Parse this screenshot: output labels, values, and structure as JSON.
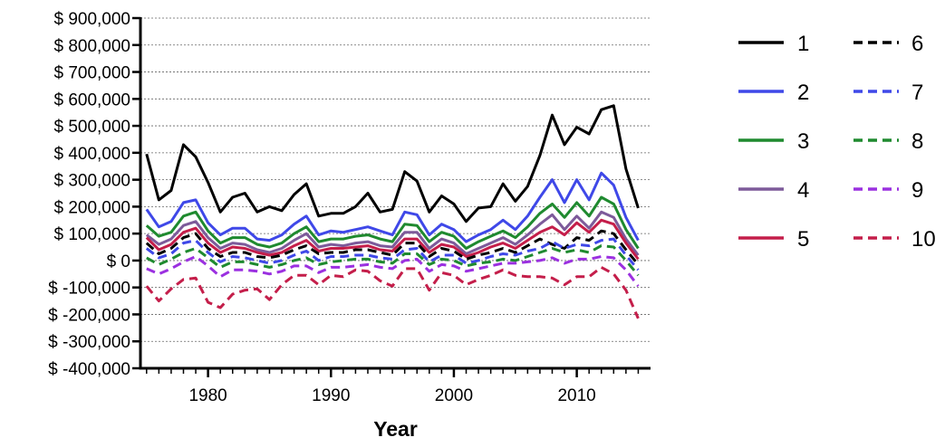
{
  "chart_data": {
    "type": "line",
    "title": "",
    "xlabel": "Year",
    "ylabel": "",
    "xlim": [
      1974.5,
      2016
    ],
    "ylim": [
      -400000,
      900000
    ],
    "grid": "horizontal-dotted",
    "legend_position": "right",
    "x_ticks": [
      1980,
      1990,
      2000,
      2010
    ],
    "y_ticks": [
      {
        "value": 900000,
        "label": "$ 900,000"
      },
      {
        "value": 800000,
        "label": "$ 800,000"
      },
      {
        "value": 700000,
        "label": "$ 700,000"
      },
      {
        "value": 600000,
        "label": "$ 600,000"
      },
      {
        "value": 500000,
        "label": "$ 500,000"
      },
      {
        "value": 400000,
        "label": "$ 400,000"
      },
      {
        "value": 300000,
        "label": "$ 300,000"
      },
      {
        "value": 200000,
        "label": "$ 200,000"
      },
      {
        "value": 100000,
        "label": "$ 100,000"
      },
      {
        "value": 0,
        "label": "$ 0"
      },
      {
        "value": -100000,
        "label": "$ -100,000"
      },
      {
        "value": -200000,
        "label": "$ -200,000"
      },
      {
        "value": -300000,
        "label": "$ -300,000"
      },
      {
        "value": -400000,
        "label": "$ -400,000"
      }
    ],
    "x": [
      1975,
      1976,
      1977,
      1978,
      1979,
      1980,
      1981,
      1982,
      1983,
      1984,
      1985,
      1986,
      1987,
      1988,
      1989,
      1990,
      1991,
      1992,
      1993,
      1994,
      1995,
      1996,
      1997,
      1998,
      1999,
      2000,
      2001,
      2002,
      2003,
      2004,
      2005,
      2006,
      2007,
      2008,
      2009,
      2010,
      2011,
      2012,
      2013,
      2014,
      2015
    ],
    "series": [
      {
        "name": "1",
        "color": "#000000",
        "dash": "solid",
        "values": [
          395000,
          225000,
          260000,
          430000,
          385000,
          290000,
          180000,
          235000,
          250000,
          180000,
          200000,
          185000,
          245000,
          285000,
          165000,
          175000,
          175000,
          200000,
          250000,
          180000,
          190000,
          330000,
          295000,
          180000,
          240000,
          210000,
          145000,
          195000,
          200000,
          285000,
          220000,
          275000,
          390000,
          540000,
          430000,
          495000,
          470000,
          560000,
          575000,
          340000,
          195000
        ]
      },
      {
        "name": "2",
        "color": "#3f48e8",
        "dash": "solid",
        "values": [
          190000,
          125000,
          145000,
          215000,
          225000,
          140000,
          95000,
          120000,
          120000,
          80000,
          75000,
          95000,
          135000,
          165000,
          95000,
          110000,
          105000,
          115000,
          125000,
          110000,
          95000,
          180000,
          170000,
          95000,
          135000,
          115000,
          70000,
          95000,
          115000,
          150000,
          115000,
          165000,
          235000,
          300000,
          215000,
          300000,
          225000,
          325000,
          280000,
          160000,
          75000
        ]
      },
      {
        "name": "3",
        "color": "#1f8a2f",
        "dash": "solid",
        "values": [
          130000,
          90000,
          105000,
          165000,
          180000,
          110000,
          65000,
          85000,
          85000,
          60000,
          50000,
          65000,
          100000,
          125000,
          70000,
          80000,
          80000,
          90000,
          95000,
          80000,
          70000,
          135000,
          130000,
          70000,
          105000,
          90000,
          45000,
          70000,
          90000,
          110000,
          85000,
          125000,
          175000,
          210000,
          160000,
          215000,
          165000,
          235000,
          210000,
          115000,
          45000
        ]
      },
      {
        "name": "4",
        "color": "#7d5a9a",
        "dash": "solid",
        "values": [
          95000,
          60000,
          80000,
          130000,
          145000,
          85000,
          45000,
          65000,
          60000,
          40000,
          30000,
          45000,
          75000,
          100000,
          50000,
          60000,
          55000,
          65000,
          70000,
          55000,
          50000,
          105000,
          105000,
          45000,
          80000,
          65000,
          25000,
          45000,
          65000,
          85000,
          60000,
          95000,
          135000,
          170000,
          115000,
          165000,
          120000,
          180000,
          160000,
          80000,
          20000
        ]
      },
      {
        "name": "5",
        "color": "#c41e4a",
        "dash": "solid",
        "values": [
          85000,
          40000,
          60000,
          105000,
          120000,
          65000,
          30000,
          50000,
          45000,
          30000,
          20000,
          30000,
          55000,
          75000,
          35000,
          45000,
          45000,
          50000,
          55000,
          40000,
          35000,
          80000,
          80000,
          30000,
          60000,
          50000,
          15000,
          30000,
          50000,
          65000,
          45000,
          75000,
          105000,
          125000,
          95000,
          140000,
          105000,
          150000,
          135000,
          65000,
          5000
        ]
      },
      {
        "name": "6",
        "color": "#000000",
        "dash": "dashed",
        "values": [
          65000,
          25000,
          45000,
          85000,
          100000,
          45000,
          15000,
          30000,
          30000,
          15000,
          10000,
          20000,
          40000,
          55000,
          25000,
          30000,
          30000,
          40000,
          40000,
          30000,
          20000,
          65000,
          65000,
          15000,
          45000,
          35000,
          5000,
          20000,
          30000,
          45000,
          30000,
          55000,
          80000,
          60000,
          45000,
          85000,
          75000,
          110000,
          100000,
          40000,
          -15000
        ]
      },
      {
        "name": "7",
        "color": "#3f48e8",
        "dash": "dashed",
        "values": [
          45000,
          10000,
          25000,
          65000,
          75000,
          30000,
          -5000,
          15000,
          10000,
          0,
          -10000,
          0,
          20000,
          35000,
          0,
          15000,
          15000,
          20000,
          20000,
          10000,
          5000,
          40000,
          45000,
          -5000,
          20000,
          20000,
          -10000,
          0,
          15000,
          25000,
          20000,
          35000,
          45000,
          70000,
          45000,
          60000,
          55000,
          75000,
          80000,
          20000,
          -35000
        ]
      },
      {
        "name": "8",
        "color": "#1f8a2f",
        "dash": "dashed",
        "values": [
          10000,
          -15000,
          5000,
          30000,
          45000,
          10000,
          -25000,
          -5000,
          -5000,
          -15000,
          -25000,
          -15000,
          0,
          10000,
          -15000,
          -5000,
          0,
          5000,
          5000,
          -5000,
          -10000,
          25000,
          25000,
          -15000,
          5000,
          0,
          -20000,
          -10000,
          -5000,
          5000,
          0,
          15000,
          30000,
          45000,
          30000,
          40000,
          30000,
          55000,
          50000,
          0,
          -55000
        ]
      },
      {
        "name": "9",
        "color": "#9b30e0",
        "dash": "dashed",
        "values": [
          -30000,
          -50000,
          -30000,
          -5000,
          15000,
          -20000,
          -60000,
          -35000,
          -35000,
          -40000,
          -50000,
          -40000,
          -20000,
          -20000,
          -45000,
          -25000,
          -25000,
          -20000,
          -15000,
          -25000,
          -30000,
          0,
          5000,
          -40000,
          -15000,
          -20000,
          -40000,
          -30000,
          -20000,
          -10000,
          -10000,
          -5000,
          0,
          10000,
          -10000,
          5000,
          5000,
          15000,
          10000,
          -35000,
          -95000
        ]
      },
      {
        "name": "10",
        "color": "#c41e4a",
        "dash": "dashed",
        "values": [
          -95000,
          -150000,
          -105000,
          -70000,
          -65000,
          -155000,
          -175000,
          -125000,
          -110000,
          -105000,
          -145000,
          -90000,
          -55000,
          -55000,
          -90000,
          -55000,
          -60000,
          -35000,
          -40000,
          -75000,
          -95000,
          -30000,
          -30000,
          -110000,
          -45000,
          -55000,
          -90000,
          -70000,
          -55000,
          -35000,
          -55000,
          -60000,
          -60000,
          -65000,
          -90000,
          -60000,
          -60000,
          -25000,
          -50000,
          -110000,
          -215000
        ]
      }
    ]
  }
}
